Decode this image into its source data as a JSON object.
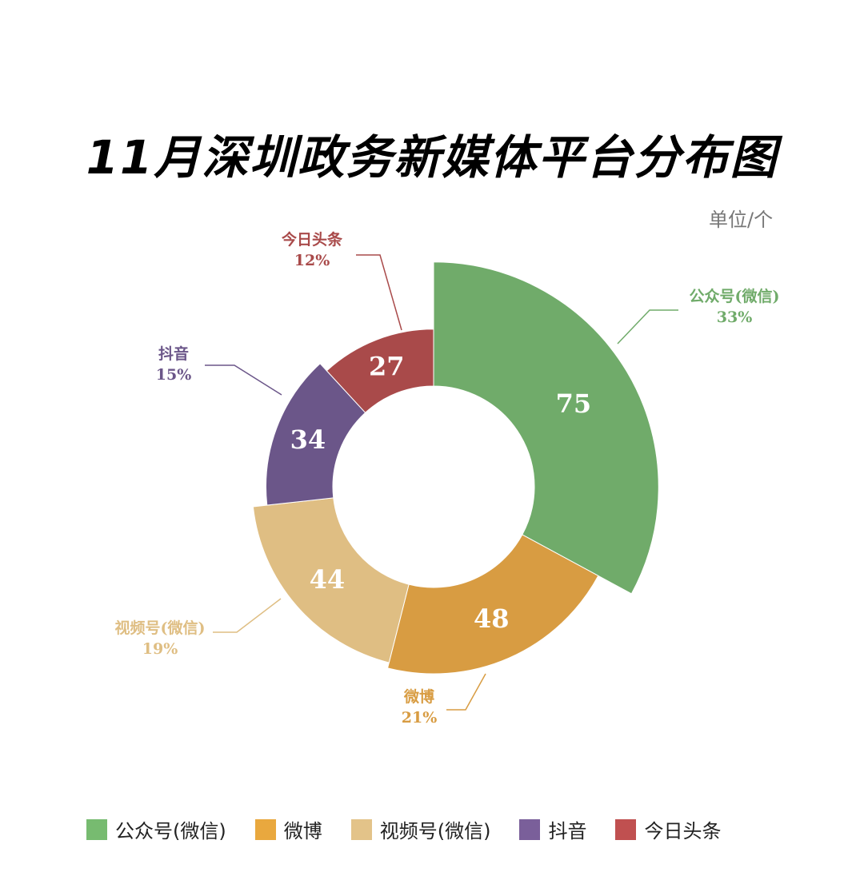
{
  "title": "11月深圳政务新媒体平台分布图",
  "unit": "单位/个",
  "chart_data": {
    "type": "pie",
    "variant": "rose-donut",
    "title": "11月深圳政务新媒体平台分布图",
    "unit": "单位/个",
    "legend_position": "bottom",
    "categories": [
      "公众号(微信)",
      "微博",
      "视频号(微信)",
      "抖音",
      "今日头条"
    ],
    "values": [
      75,
      48,
      44,
      34,
      27
    ],
    "percent_labels": [
      "33%",
      "21%",
      "19%",
      "15%",
      "12%"
    ],
    "colors": [
      "#70ab6a",
      "#d89c42",
      "#dfbe83",
      "#6b5689",
      "#a94a4a"
    ],
    "legend_colors": [
      "#77bb70",
      "#e9a83e",
      "#e3c389",
      "#7a5f9a",
      "#c05050"
    ]
  }
}
